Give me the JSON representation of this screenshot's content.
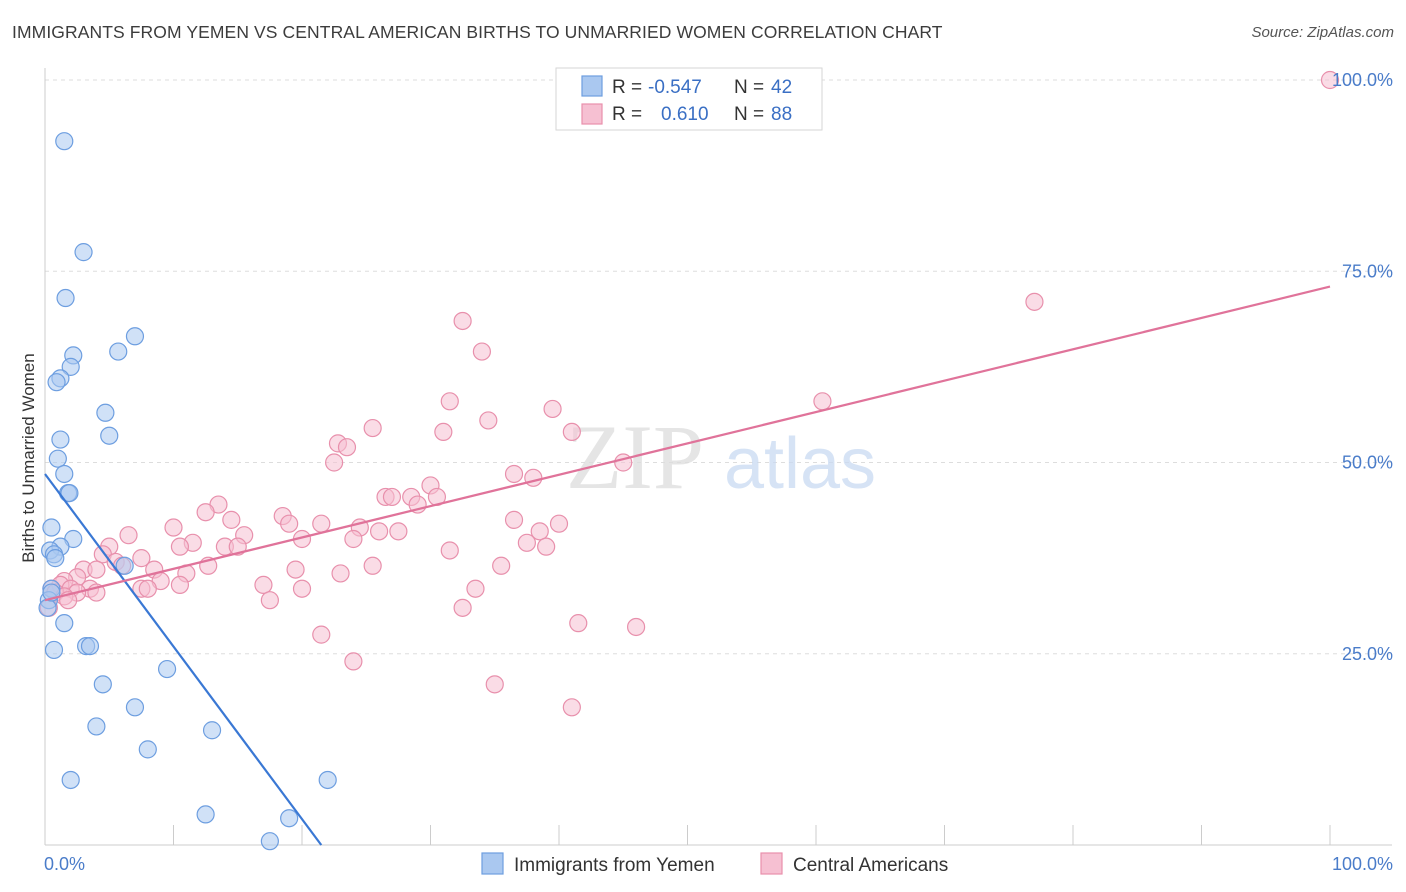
{
  "title": "IMMIGRANTS FROM YEMEN VS CENTRAL AMERICAN BIRTHS TO UNMARRIED WOMEN CORRELATION CHART",
  "source": "Source: ZipAtlas.com",
  "watermark": {
    "zip": "ZIP",
    "atlas": "atlas"
  },
  "colors": {
    "blue_fill": "#aac8f0",
    "blue_stroke": "#6d9ee0",
    "blue_line": "#3a78d4",
    "pink_fill": "#f6c0d2",
    "pink_stroke": "#e890ac",
    "pink_line": "#e0739a",
    "grid": "#dddddd",
    "tick_text": "#4a7cc9"
  },
  "legend": {
    "rows": [
      {
        "r_label": "R =",
        "r_value": "-0.547",
        "n_label": "N =",
        "n_value": "42"
      },
      {
        "r_label": "R =",
        "r_value": "0.610",
        "n_label": "N =",
        "n_value": "88"
      }
    ]
  },
  "chart_data": {
    "type": "scatter",
    "xlabel": "",
    "ylabel": "Births to Unmarried Women",
    "xlim": [
      0,
      100
    ],
    "ylim": [
      0,
      100
    ],
    "x_tick_labels": [
      "0.0%",
      "100.0%"
    ],
    "y_tick_labels": [
      "25.0%",
      "50.0%",
      "75.0%",
      "100.0%"
    ],
    "y_ticks": [
      25,
      50,
      75,
      100
    ],
    "grid": true,
    "legend_position": "bottom-center",
    "series": [
      {
        "name": "Immigrants from Yemen",
        "color": "#aac8f0",
        "points": [
          [
            1.5,
            92.0
          ],
          [
            3.0,
            77.5
          ],
          [
            1.6,
            71.5
          ],
          [
            2.2,
            64.0
          ],
          [
            2.0,
            62.5
          ],
          [
            1.2,
            61.0
          ],
          [
            0.9,
            60.5
          ],
          [
            7.0,
            66.5
          ],
          [
            5.7,
            64.5
          ],
          [
            4.7,
            56.5
          ],
          [
            5.0,
            53.5
          ],
          [
            1.2,
            53.0
          ],
          [
            1.0,
            50.5
          ],
          [
            1.5,
            48.5
          ],
          [
            1.8,
            46.0
          ],
          [
            1.9,
            46.0
          ],
          [
            0.5,
            41.5
          ],
          [
            2.2,
            40.0
          ],
          [
            1.2,
            39.0
          ],
          [
            0.4,
            38.5
          ],
          [
            0.7,
            38.0
          ],
          [
            0.8,
            37.5
          ],
          [
            6.2,
            36.5
          ],
          [
            0.5,
            33.5
          ],
          [
            0.3,
            32.0
          ],
          [
            0.2,
            31.0
          ],
          [
            1.5,
            29.0
          ],
          [
            0.7,
            25.5
          ],
          [
            3.2,
            26.0
          ],
          [
            3.5,
            26.0
          ],
          [
            9.5,
            23.0
          ],
          [
            4.5,
            21.0
          ],
          [
            7.0,
            18.0
          ],
          [
            4.0,
            15.5
          ],
          [
            13.0,
            15.0
          ],
          [
            8.0,
            12.5
          ],
          [
            2.0,
            8.5
          ],
          [
            22.0,
            8.5
          ],
          [
            12.5,
            4.0
          ],
          [
            19.0,
            3.5
          ],
          [
            17.5,
            0.5
          ],
          [
            0.5,
            33.0
          ]
        ],
        "trend": [
          [
            0,
            48.5
          ],
          [
            21.5,
            0
          ]
        ]
      },
      {
        "name": "Central Americans",
        "color": "#f6c0d2",
        "points": [
          [
            100,
            100
          ],
          [
            77.0,
            71.0
          ],
          [
            32.5,
            68.5
          ],
          [
            34.0,
            64.5
          ],
          [
            60.5,
            58.0
          ],
          [
            31.5,
            58.0
          ],
          [
            39.5,
            57.0
          ],
          [
            34.5,
            55.5
          ],
          [
            25.5,
            54.5
          ],
          [
            41.0,
            54.0
          ],
          [
            31.0,
            54.0
          ],
          [
            22.8,
            52.5
          ],
          [
            23.5,
            52.0
          ],
          [
            22.5,
            50.0
          ],
          [
            45.0,
            50.0
          ],
          [
            36.5,
            48.5
          ],
          [
            38.0,
            48.0
          ],
          [
            30.0,
            47.0
          ],
          [
            28.5,
            45.5
          ],
          [
            26.5,
            45.5
          ],
          [
            27.0,
            45.5
          ],
          [
            30.5,
            45.5
          ],
          [
            29.0,
            44.5
          ],
          [
            13.5,
            44.5
          ],
          [
            12.5,
            43.5
          ],
          [
            18.5,
            43.0
          ],
          [
            14.5,
            42.5
          ],
          [
            36.5,
            42.5
          ],
          [
            40.0,
            42.0
          ],
          [
            21.5,
            42.0
          ],
          [
            19.0,
            42.0
          ],
          [
            24.5,
            41.5
          ],
          [
            10.0,
            41.5
          ],
          [
            26.0,
            41.0
          ],
          [
            27.5,
            41.0
          ],
          [
            38.5,
            41.0
          ],
          [
            15.5,
            40.5
          ],
          [
            6.5,
            40.5
          ],
          [
            24.0,
            40.0
          ],
          [
            20.0,
            40.0
          ],
          [
            11.5,
            39.5
          ],
          [
            10.5,
            39.0
          ],
          [
            14.0,
            39.0
          ],
          [
            15.0,
            39.0
          ],
          [
            37.5,
            39.5
          ],
          [
            39.0,
            39.0
          ],
          [
            5.0,
            39.0
          ],
          [
            31.5,
            38.5
          ],
          [
            4.5,
            38.0
          ],
          [
            7.5,
            37.5
          ],
          [
            5.5,
            37.0
          ],
          [
            6.0,
            36.5
          ],
          [
            12.7,
            36.5
          ],
          [
            35.5,
            36.5
          ],
          [
            25.5,
            36.5
          ],
          [
            19.5,
            36.0
          ],
          [
            8.5,
            36.0
          ],
          [
            3.0,
            36.0
          ],
          [
            4.0,
            36.0
          ],
          [
            23.0,
            35.5
          ],
          [
            11.0,
            35.5
          ],
          [
            2.5,
            35.0
          ],
          [
            1.5,
            34.5
          ],
          [
            9.0,
            34.5
          ],
          [
            10.5,
            34.0
          ],
          [
            17.0,
            34.0
          ],
          [
            1.2,
            34.0
          ],
          [
            0.5,
            33.5
          ],
          [
            3.5,
            33.5
          ],
          [
            20.0,
            33.5
          ],
          [
            2.0,
            33.5
          ],
          [
            7.5,
            33.5
          ],
          [
            8.0,
            33.5
          ],
          [
            33.5,
            33.5
          ],
          [
            4.0,
            33.0
          ],
          [
            2.5,
            33.0
          ],
          [
            0.8,
            33.0
          ],
          [
            1.5,
            32.5
          ],
          [
            1.8,
            32.0
          ],
          [
            17.5,
            32.0
          ],
          [
            32.5,
            31.0
          ],
          [
            0.3,
            31.0
          ],
          [
            41.5,
            29.0
          ],
          [
            46.0,
            28.5
          ],
          [
            21.5,
            27.5
          ],
          [
            24.0,
            24.0
          ],
          [
            35.0,
            21.0
          ],
          [
            41.0,
            18.0
          ]
        ],
        "trend": [
          [
            0,
            32.0
          ],
          [
            100,
            73.0
          ]
        ]
      }
    ]
  },
  "bottom_legend": [
    {
      "label": "Immigrants from Yemen"
    },
    {
      "label": "Central Americans"
    }
  ]
}
